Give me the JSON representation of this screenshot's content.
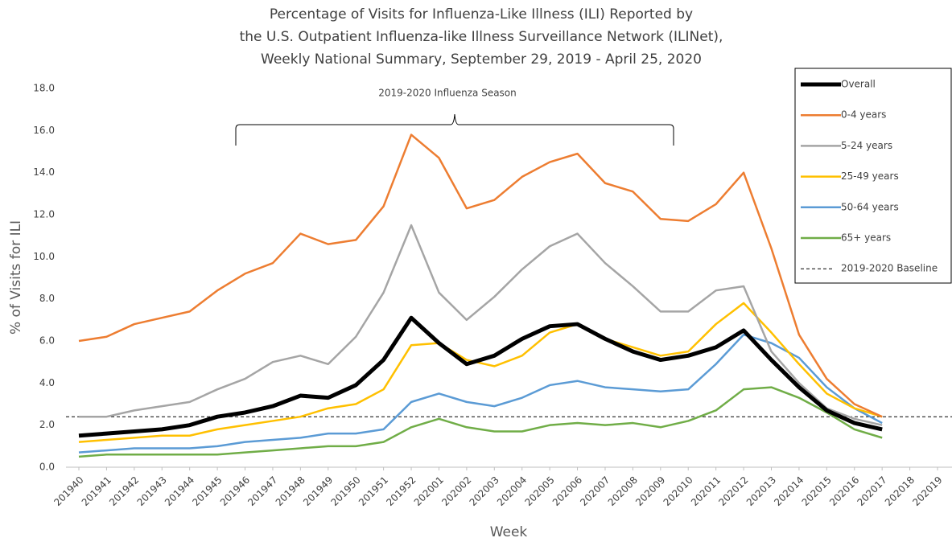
{
  "chart_data": {
    "type": "line",
    "title": [
      "Percentage of Visits for Influenza-Like Illness (ILI) Reported by",
      "the U.S. Outpatient Influenza-like Illness Surveillance Network (ILINet),",
      "Weekly National Summary, September 29, 2019 - April 25, 2020"
    ],
    "x_label": "Week",
    "y_label": "% of Visits for ILI",
    "annotation": "2019-2020 Influenza Season",
    "categories": [
      "201940",
      "201941",
      "201942",
      "201943",
      "201944",
      "201945",
      "201946",
      "201947",
      "201948",
      "201949",
      "201950",
      "201951",
      "201952",
      "202001",
      "202002",
      "202003",
      "202004",
      "202005",
      "202006",
      "202007",
      "202008",
      "202009",
      "202010",
      "202011",
      "202012",
      "202013",
      "202014",
      "202015",
      "202016",
      "202017",
      "202018",
      "202019"
    ],
    "ylim": [
      0,
      18
    ],
    "yticks": [
      {
        "value": 0,
        "label": "0.0"
      },
      {
        "value": 2,
        "label": "2.0"
      },
      {
        "value": 4,
        "label": "4.0"
      },
      {
        "value": 6,
        "label": "6.0"
      },
      {
        "value": 8,
        "label": "8.0"
      },
      {
        "value": 10,
        "label": "10.0"
      },
      {
        "value": 12,
        "label": "12.0"
      },
      {
        "value": 14,
        "label": "14.0"
      },
      {
        "value": 16,
        "label": "16.0"
      },
      {
        "value": 18,
        "label": "18.0"
      }
    ],
    "legend": "right",
    "series": [
      {
        "name": "Overall",
        "color": "#000000",
        "width": 5,
        "values": [
          1.5,
          1.6,
          1.7,
          1.8,
          2.0,
          2.4,
          2.6,
          2.9,
          3.4,
          3.3,
          3.9,
          5.1,
          7.1,
          5.9,
          4.9,
          5.3,
          6.1,
          6.7,
          6.8,
          6.1,
          5.5,
          5.1,
          5.3,
          5.7,
          6.5,
          5.1,
          3.8,
          2.7,
          2.1,
          1.8,
          null,
          null
        ]
      },
      {
        "name": "0-4 years",
        "color": "#ed7d31",
        "width": 2.5,
        "values": [
          6.0,
          6.2,
          6.8,
          7.1,
          7.4,
          8.4,
          9.2,
          9.7,
          11.1,
          10.6,
          10.8,
          12.4,
          15.8,
          14.7,
          12.3,
          12.7,
          13.8,
          14.5,
          14.9,
          13.5,
          13.1,
          11.8,
          11.7,
          12.5,
          14.0,
          10.4,
          6.3,
          4.2,
          3.0,
          2.4,
          null,
          null
        ]
      },
      {
        "name": "5-24 years",
        "color": "#a5a5a5",
        "width": 2.5,
        "values": [
          2.4,
          2.4,
          2.7,
          2.9,
          3.1,
          3.7,
          4.2,
          5.0,
          5.3,
          4.9,
          6.2,
          8.3,
          11.5,
          8.3,
          7.0,
          8.1,
          9.4,
          10.5,
          11.1,
          9.7,
          8.6,
          7.4,
          7.4,
          8.4,
          8.6,
          5.5,
          4.0,
          2.8,
          2.3,
          2.0,
          null,
          null
        ]
      },
      {
        "name": "25-49 years",
        "color": "#ffc000",
        "width": 2.5,
        "values": [
          1.2,
          1.3,
          1.4,
          1.5,
          1.5,
          1.8,
          2.0,
          2.2,
          2.4,
          2.8,
          3.0,
          3.7,
          5.8,
          5.9,
          5.1,
          4.8,
          5.3,
          6.4,
          6.8,
          6.1,
          5.7,
          5.3,
          5.5,
          6.8,
          7.8,
          6.4,
          4.9,
          3.5,
          2.8,
          2.4,
          null,
          null
        ]
      },
      {
        "name": "50-64 years",
        "color": "#5b9bd5",
        "width": 2.5,
        "values": [
          0.7,
          0.8,
          0.9,
          0.9,
          0.9,
          1.0,
          1.2,
          1.3,
          1.4,
          1.6,
          1.6,
          1.8,
          3.1,
          3.5,
          3.1,
          2.9,
          3.3,
          3.9,
          4.1,
          3.8,
          3.7,
          3.6,
          3.7,
          4.9,
          6.3,
          5.9,
          5.2,
          3.8,
          2.8,
          2.1,
          null,
          null
        ]
      },
      {
        "name": "65+ years",
        "color": "#70ad47",
        "width": 2.5,
        "values": [
          0.5,
          0.6,
          0.6,
          0.6,
          0.6,
          0.6,
          0.7,
          0.8,
          0.9,
          1.0,
          1.0,
          1.2,
          1.9,
          2.3,
          1.9,
          1.7,
          1.7,
          2.0,
          2.1,
          2.0,
          2.1,
          1.9,
          2.2,
          2.7,
          3.7,
          3.8,
          3.3,
          2.6,
          1.8,
          1.4,
          null,
          null
        ]
      }
    ],
    "baseline": {
      "name": "2019-2020 Baseline",
      "value": 2.4,
      "color": "#000000"
    }
  }
}
